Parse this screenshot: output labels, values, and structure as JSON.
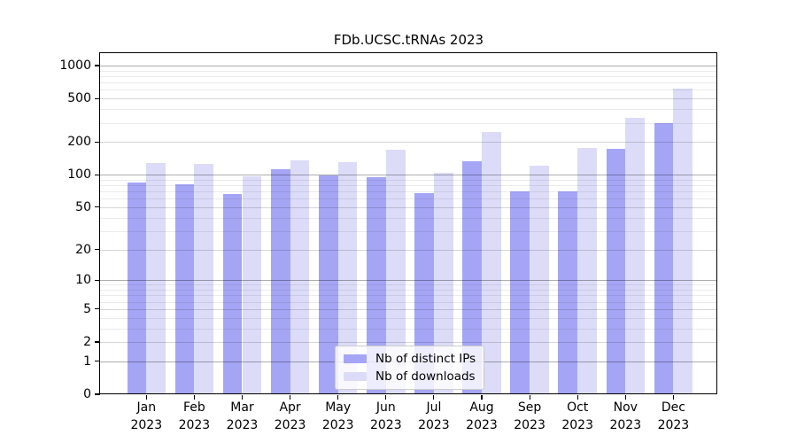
{
  "figure": {
    "title": "FDb.UCSC.tRNAs 2023"
  },
  "chart_data": {
    "type": "bar",
    "title": "FDb.UCSC.tRNAs 2023",
    "subtitle": "",
    "xlabel": "",
    "ylabel": "",
    "x_tick_year": "2023",
    "months": [
      "Jan",
      "Feb",
      "Mar",
      "Apr",
      "May",
      "Jun",
      "Jul",
      "Aug",
      "Sep",
      "Oct",
      "Nov",
      "Dec"
    ],
    "categories": [
      "Jan 2023",
      "Feb 2023",
      "Mar 2023",
      "Apr 2023",
      "May 2023",
      "Jun 2023",
      "Jul 2023",
      "Aug 2023",
      "Sep 2023",
      "Oct 2023",
      "Nov 2023",
      "Dec 2023"
    ],
    "series": [
      {
        "name": "Nb of distinct IPs",
        "color": "#a5a5f6",
        "values": [
          85,
          82,
          66,
          113,
          99,
          95,
          67,
          133,
          70,
          70,
          173,
          300
        ]
      },
      {
        "name": "Nb of downloads",
        "color": "#dcdcf8",
        "values": [
          128,
          125,
          96,
          135,
          130,
          170,
          105,
          245,
          121,
          176,
          330,
          620
        ]
      }
    ],
    "y_axis": {
      "scale": "log10(value+1)",
      "tick_values": [
        0,
        1,
        2,
        5,
        10,
        20,
        50,
        100,
        200,
        500,
        1000
      ],
      "tick_labels": [
        "0",
        "1",
        "2",
        "5",
        "10",
        "20",
        "50",
        "100",
        "200",
        "500",
        "1000"
      ],
      "decade_gridlines": [
        1,
        10,
        100,
        1000
      ],
      "minor_gridlines": [
        3,
        4,
        6,
        7,
        8,
        9,
        30,
        40,
        60,
        70,
        80,
        90,
        300,
        400,
        600,
        700,
        800,
        900
      ],
      "range_top_value": 1320
    },
    "grid": true,
    "legend": {
      "position": "inside-bottom-center",
      "entries": [
        "Nb of distinct IPs",
        "Nb of downloads"
      ]
    }
  }
}
